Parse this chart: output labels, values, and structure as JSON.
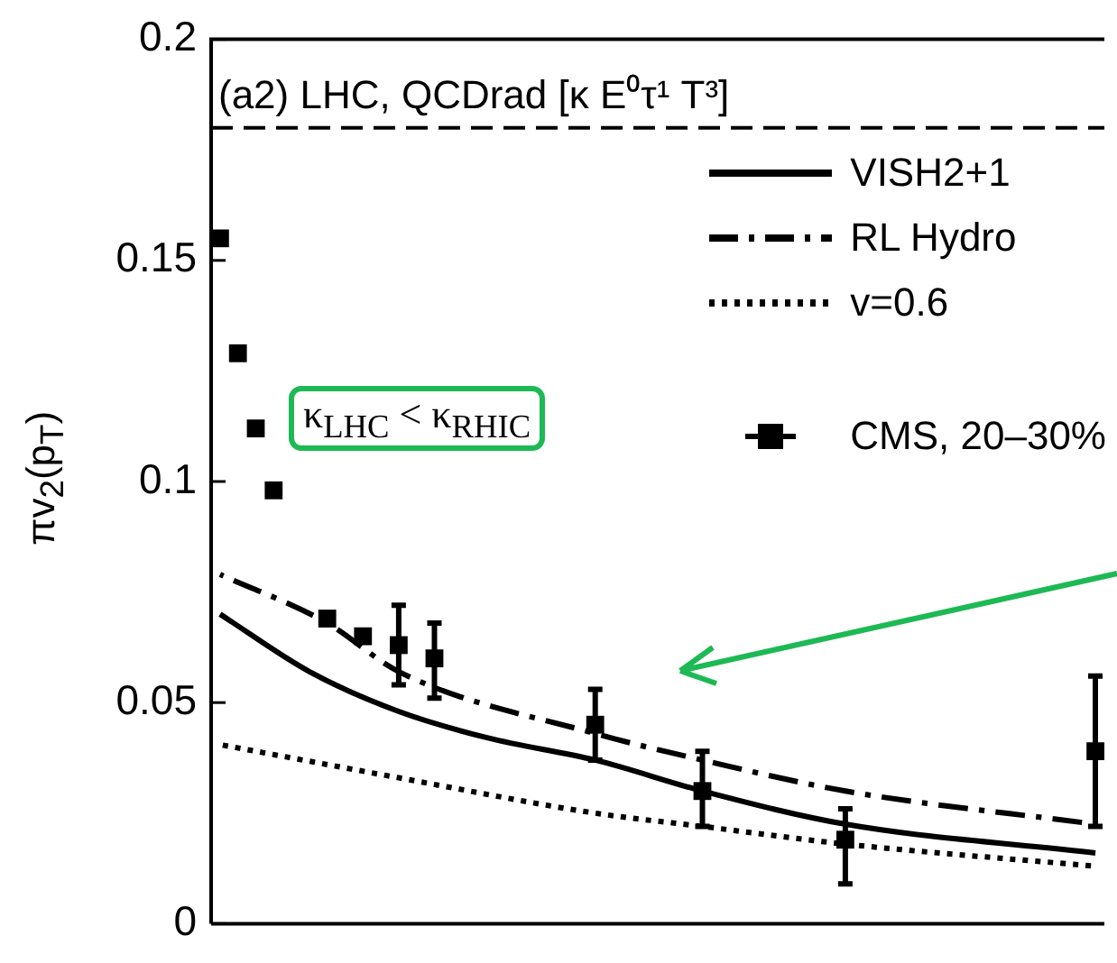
{
  "chart_data": {
    "type": "line",
    "ylabel": "πv$_{2}$(p$_{T}$)",
    "annotations": [
      "(a2) LHC, QCDrad [κ E⁰τ¹ T³]",
      "κ$_{LHC}$ < κ$_{RHIC}$"
    ],
    "categories": [
      null,
      null,
      null,
      null,
      null,
      null,
      null,
      null,
      null,
      null,
      null,
      null,
      null,
      null,
      null,
      null,
      null,
      null,
      null,
      null,
      null,
      null,
      null,
      null,
      null,
      null,
      null,
      null,
      null,
      null,
      null,
      null,
      null,
      null,
      null,
      null,
      null,
      null,
      null,
      null,
      null,
      null,
      null,
      null,
      null,
      null,
      null,
      null,
      null,
      null
    ],
    "ylim": [
      0,
      0.2
    ],
    "yticks": [
      0,
      0.05,
      0.1,
      0.15,
      0.2
    ],
    "tick_labels": "y",
    "grid": false,
    "legend": "top right",
    "ref_lines": [
      {
        "axis": "y",
        "value": 0.18,
        "line_style": "dashed",
        "color": "#000000"
      }
    ],
    "series": [
      {
        "name": "VISH2+1",
        "color": "#000000",
        "line_style": "solid",
        "marker": "none",
        "values": [
          0.07,
          null,
          null,
          null,
          null,
          0.057,
          null,
          null,
          null,
          null,
          0.048,
          null,
          null,
          null,
          null,
          0.042,
          null,
          null,
          null,
          null,
          null,
          0.037,
          null,
          null,
          null,
          null,
          null,
          0.03,
          null,
          null,
          null,
          null,
          null,
          null,
          null,
          0.0225,
          null,
          null,
          null,
          null,
          null,
          null,
          null,
          null,
          null,
          null,
          null,
          null,
          null,
          0.016
        ]
      },
      {
        "name": "RL Hydro",
        "color": "#000000",
        "line_style": "dashdot",
        "marker": "none",
        "values": [
          0.079,
          null,
          null,
          null,
          null,
          null,
          0.068,
          null,
          null,
          null,
          0.057,
          null,
          null,
          null,
          null,
          null,
          null,
          null,
          null,
          null,
          null,
          0.043,
          null,
          null,
          null,
          null,
          null,
          0.037,
          null,
          null,
          null,
          null,
          null,
          null,
          null,
          0.03,
          null,
          null,
          null,
          null,
          null,
          null,
          null,
          null,
          null,
          null,
          null,
          null,
          null,
          0.0225
        ]
      },
      {
        "name": "v=0.6",
        "color": "#000000",
        "line_style": "dotted",
        "marker": "none",
        "values": [
          0.0405,
          null,
          null,
          null,
          null,
          null,
          null,
          null,
          null,
          null,
          0.033,
          null,
          null,
          null,
          null,
          null,
          null,
          null,
          null,
          null,
          null,
          0.025,
          null,
          null,
          null,
          null,
          null,
          0.022,
          null,
          null,
          null,
          null,
          null,
          null,
          null,
          0.018,
          null,
          null,
          null,
          null,
          null,
          null,
          null,
          null,
          null,
          null,
          null,
          null,
          null,
          0.013
        ]
      },
      {
        "name": "CMS, 20–30%",
        "type": "scatter",
        "color": "#000000",
        "marker": "square",
        "values": [
          0.155,
          0.129,
          0.112,
          0.098,
          null,
          null,
          0.069,
          null,
          0.065,
          null,
          0.063,
          null,
          0.06,
          null,
          null,
          null,
          null,
          null,
          null,
          null,
          null,
          0.045,
          null,
          null,
          null,
          null,
          null,
          0.03,
          null,
          null,
          null,
          null,
          null,
          null,
          null,
          0.019,
          null,
          null,
          null,
          null,
          null,
          null,
          null,
          null,
          null,
          null,
          null,
          null,
          null,
          0.039
        ],
        "errors": [
          null,
          null,
          null,
          null,
          null,
          null,
          null,
          null,
          null,
          null,
          [
            0.054,
            0.072
          ],
          null,
          [
            0.051,
            0.068
          ],
          null,
          null,
          null,
          null,
          null,
          null,
          null,
          null,
          [
            0.037,
            0.053
          ],
          null,
          null,
          null,
          null,
          null,
          [
            0.022,
            0.039
          ],
          null,
          null,
          null,
          null,
          null,
          null,
          null,
          [
            0.009,
            0.026
          ],
          null,
          null,
          null,
          null,
          null,
          null,
          null,
          null,
          null,
          null,
          null,
          null,
          null,
          [
            0.022,
            0.056
          ]
        ]
      }
    ]
  }
}
